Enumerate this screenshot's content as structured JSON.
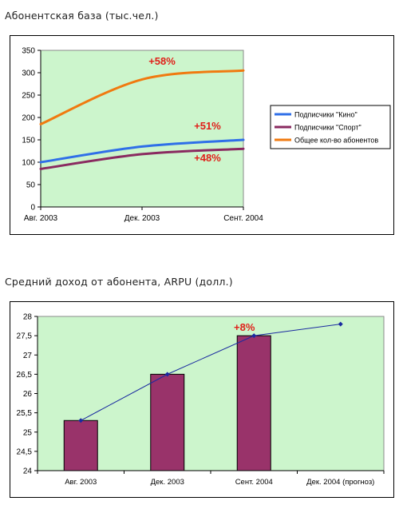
{
  "chart1": {
    "title": "Абонентская база (тыс.чел.)",
    "chart_data": {
      "type": "line",
      "x": [
        "Авг. 2003",
        "Дек. 2003",
        "Сент. 2004"
      ],
      "ylim": [
        0,
        350
      ],
      "yticks": [
        "0",
        "50",
        "100",
        "150",
        "200",
        "250",
        "300",
        "350"
      ],
      "grid": false,
      "legend": "right",
      "series": [
        {
          "name": "Подписчики \"Кино\"",
          "color": "#2f6fe8",
          "values": [
            100,
            135,
            150
          ]
        },
        {
          "name": "Подписчики \"Спорт\"",
          "color": "#8a2a60",
          "values": [
            85,
            118,
            130
          ]
        },
        {
          "name": "Общее кол-во абонентов",
          "color": "#f07a10",
          "values": [
            185,
            285,
            305
          ]
        }
      ],
      "annotations": [
        "+58%",
        "+51%",
        "+48%"
      ]
    }
  },
  "chart2": {
    "title": "Средний доход от абонента, ARPU (долл.)",
    "chart_data": {
      "type": "bar",
      "categories": [
        "Авг. 2003",
        "Дек. 2003",
        "Сент. 2004",
        "Дек. 2004 (прогноз)"
      ],
      "ylim": [
        24,
        28
      ],
      "yticks": [
        "24",
        "24,5",
        "25",
        "25,5",
        "26",
        "26,5",
        "27",
        "27,5",
        "28"
      ],
      "grid": false,
      "bar_color": "#99336a",
      "line_color": "#1a2aa0",
      "series": [
        {
          "values": [
            25.3,
            26.5,
            27.5,
            null
          ]
        },
        {
          "values": [
            25.3,
            26.5,
            27.5,
            27.8
          ]
        }
      ],
      "annotations": [
        "+8%"
      ]
    }
  }
}
